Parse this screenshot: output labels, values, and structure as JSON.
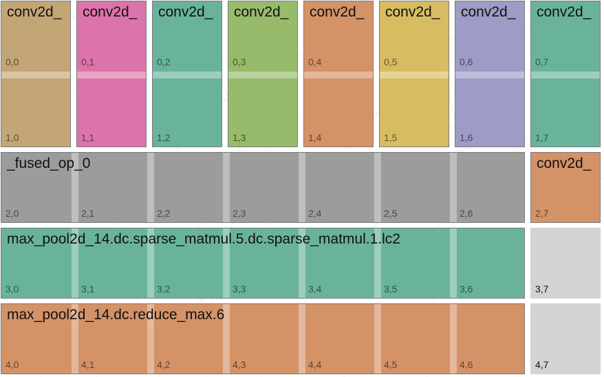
{
  "colors": {
    "tan": "#c3a676",
    "pink": "#dc73aa",
    "teal": "#69b39d",
    "green": "#97bb6a",
    "orange": "#d49267",
    "yellow": "#d8bc62",
    "lavender": "#9c9cc6",
    "gray": "#9c9c9c",
    "empty": "#d3d3d3"
  },
  "grid": {
    "rows": 5,
    "cols": 8
  },
  "blocks": [
    {
      "label": "conv2d_",
      "color": "tan",
      "row0": 0,
      "col0": 0,
      "row1": 1,
      "col1": 0
    },
    {
      "label": "conv2d_",
      "color": "pink",
      "row0": 0,
      "col0": 1,
      "row1": 1,
      "col1": 1
    },
    {
      "label": "conv2d_",
      "color": "teal",
      "row0": 0,
      "col0": 2,
      "row1": 1,
      "col1": 2
    },
    {
      "label": "conv2d_",
      "color": "green",
      "row0": 0,
      "col0": 3,
      "row1": 1,
      "col1": 3
    },
    {
      "label": "conv2d_",
      "color": "orange",
      "row0": 0,
      "col0": 4,
      "row1": 1,
      "col1": 4
    },
    {
      "label": "conv2d_",
      "color": "yellow",
      "row0": 0,
      "col0": 5,
      "row1": 1,
      "col1": 5
    },
    {
      "label": "conv2d_",
      "color": "lavender",
      "row0": 0,
      "col0": 6,
      "row1": 1,
      "col1": 6
    },
    {
      "label": "conv2d_",
      "color": "teal",
      "row0": 0,
      "col0": 7,
      "row1": 1,
      "col1": 7
    },
    {
      "label": "_fused_op_0",
      "color": "gray",
      "row0": 2,
      "col0": 0,
      "row1": 2,
      "col1": 6
    },
    {
      "label": "conv2d_",
      "color": "orange",
      "row0": 2,
      "col0": 7,
      "row1": 2,
      "col1": 7
    },
    {
      "label": "max_pool2d_14.dc.sparse_matmul.5.dc.sparse_matmul.1.lc2",
      "color": "teal",
      "row0": 3,
      "col0": 0,
      "row1": 3,
      "col1": 6
    },
    {
      "label": "",
      "color": "empty",
      "row0": 3,
      "col0": 7,
      "row1": 3,
      "col1": 7
    },
    {
      "label": "max_pool2d_14.dc.reduce_max.6",
      "color": "orange",
      "row0": 4,
      "col0": 0,
      "row1": 4,
      "col1": 6
    },
    {
      "label": "",
      "color": "empty",
      "row0": 4,
      "col0": 7,
      "row1": 4,
      "col1": 7
    }
  ],
  "cells": [
    [
      "0,0",
      "0,1",
      "0,2",
      "0,3",
      "0,4",
      "0,5",
      "0,6",
      "0,7"
    ],
    [
      "1,0",
      "1,1",
      "1,2",
      "1,3",
      "1,4",
      "1,5",
      "1,6",
      "1,7"
    ],
    [
      "2,0",
      "2,1",
      "2,2",
      "2,3",
      "2,4",
      "2,5",
      "2,6",
      "2,7"
    ],
    [
      "3,0",
      "3,1",
      "3,2",
      "3,3",
      "3,4",
      "3,5",
      "3,6",
      "3,7"
    ],
    [
      "4,0",
      "4,1",
      "4,2",
      "4,3",
      "4,4",
      "4,5",
      "4,6",
      "4,7"
    ]
  ]
}
